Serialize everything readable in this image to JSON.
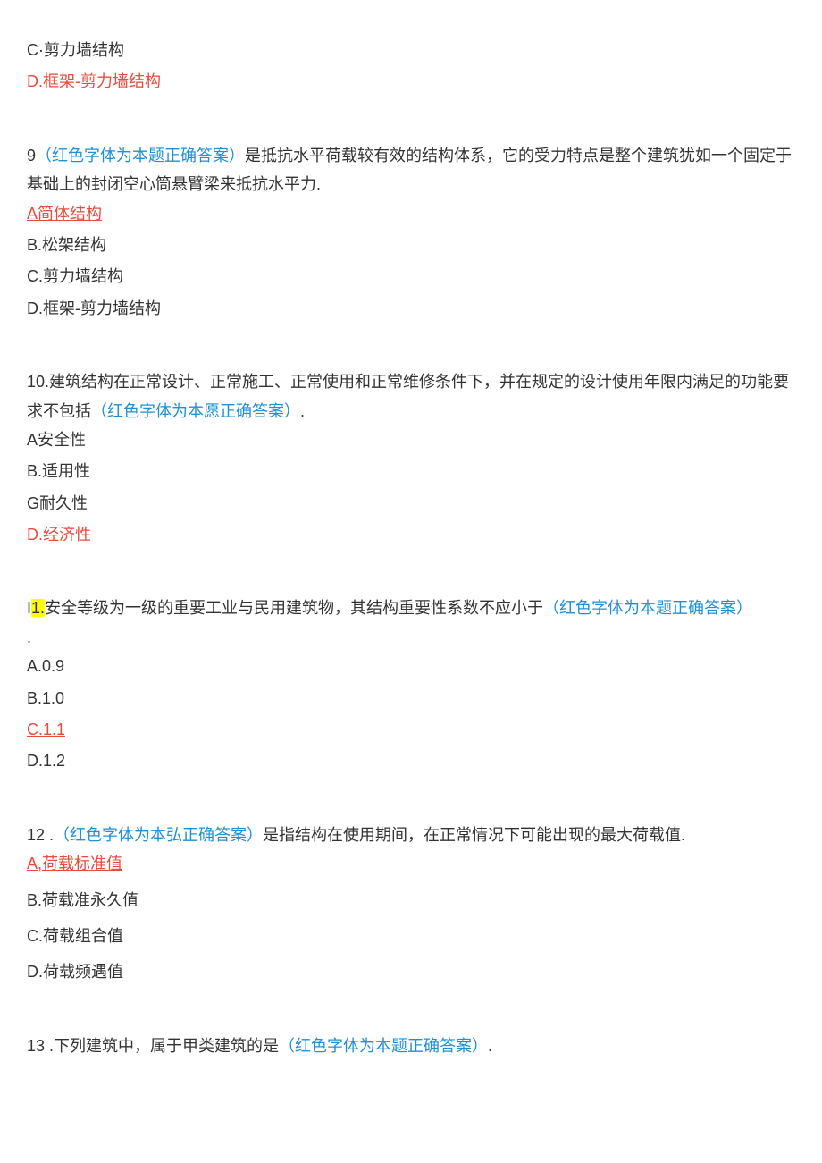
{
  "q8": {
    "optC": "C·剪力墙结构",
    "optD": "D.框架-剪力墙结构"
  },
  "q9": {
    "num": "9",
    "hint": "（红色字体为本题正确答案）",
    "stem": "是抵抗水平荷载较有效的结构体系，它的受力特点是整个建筑犹如一个固定于基础上的封闭空心筒悬臂梁来抵抗水平力.",
    "optA": "A简体结构",
    "optB": "B.松架结构",
    "optC": "C.剪力墙结构",
    "optD": "D.框架-剪力墙结构"
  },
  "q10": {
    "num": "10.",
    "stem1": "建筑结构在正常设计、正常施工、正常使用和正常维修条件下，并在规定的设计使用年限内满足的功能要求不包括",
    "hint": "（红色字体为本愿正确答案）",
    "punct": ".",
    "optA": "A安全性",
    "optB": "B.适用性",
    "optC": "G耐久性",
    "optD": "D.经济性"
  },
  "q11": {
    "prefix": "I",
    "highlighted": "1.",
    "stem": "安全等级为一级的重要工业与民用建筑物，其结构重要性系数不应小于",
    "hint": "（红色字体为本题正确答案）",
    "punct": ".",
    "optA": "A.0.9",
    "optB": "B.1.0",
    "optC": "C.1.1",
    "optD": "D.1.2"
  },
  "q12": {
    "num": "12   .",
    "hint": "（红色字体为本弘正确答案）",
    "stem": "是指结构在使用期间，在正常情况下可能出现的最大荷载值.",
    "optA": "A,荷载标准值",
    "optB": "B.荷载准永久值",
    "optC": "C.荷载组合值",
    "optD": "D.荷载频遇值"
  },
  "q13": {
    "num": "13   .",
    "stem": "下列建筑中，属于甲类建筑的是",
    "hint": "（红色字体为本题正确答案）",
    "punct": "."
  }
}
